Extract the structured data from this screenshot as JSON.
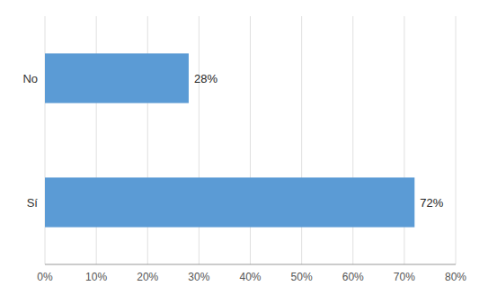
{
  "chart_data": {
    "type": "bar",
    "orientation": "horizontal",
    "categories": [
      "Sí",
      "No"
    ],
    "values": [
      0.72,
      0.28
    ],
    "value_labels": [
      "72%",
      "28%"
    ],
    "data_labels": true,
    "color": "#5B9BD5",
    "xlim": [
      0,
      0.8
    ],
    "xticks": [
      {
        "value": 0.0,
        "label": "0%"
      },
      {
        "value": 0.1,
        "label": "10%"
      },
      {
        "value": 0.2,
        "label": "20%"
      },
      {
        "value": 0.3,
        "label": "30%"
      },
      {
        "value": 0.4,
        "label": "40%"
      },
      {
        "value": 0.5,
        "label": "50%"
      },
      {
        "value": 0.6,
        "label": "60%"
      },
      {
        "value": 0.7,
        "label": "70%"
      },
      {
        "value": 0.8,
        "label": "80%"
      }
    ],
    "grid": true
  }
}
